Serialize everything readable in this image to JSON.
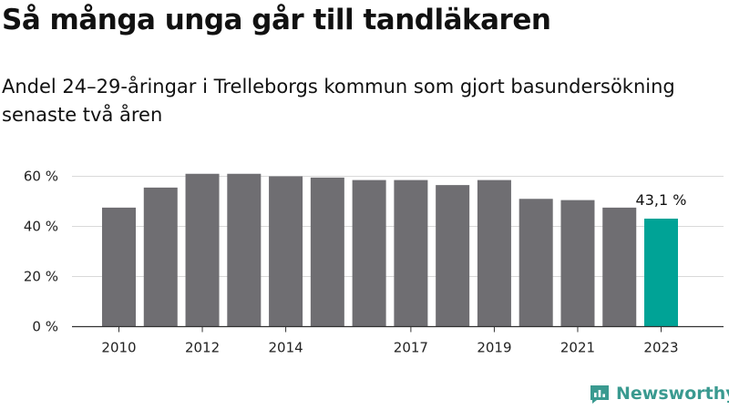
{
  "title": "Så många unga går till tandläkaren",
  "subtitle": "Andel 24–29-åringar i Trelleborgs kommun som gjort basundersökning senaste två åren",
  "brand": {
    "name": "Newsworthy",
    "icon": "newsworthy-logo-icon",
    "color": "#3a9a90"
  },
  "chart_data": {
    "type": "bar",
    "title": "Så många unga går till tandläkaren",
    "subtitle": "Andel 24–29-åringar i Trelleborgs kommun som gjort basundersökning senaste två åren",
    "categories": [
      "2010",
      "2011",
      "2012",
      "2013",
      "2014",
      "2015",
      "2016",
      "2017",
      "2018",
      "2019",
      "2020",
      "2021",
      "2022",
      "2023"
    ],
    "x_tick_labels": [
      "2010",
      "",
      "2012",
      "",
      "2014",
      "",
      "",
      "2017",
      "",
      "2019",
      "",
      "2021",
      "",
      "2023"
    ],
    "values": [
      47.5,
      55.5,
      61,
      61,
      60,
      59.5,
      58.5,
      58.5,
      56.5,
      58.5,
      51,
      50.5,
      47.5,
      43.1
    ],
    "ylim": [
      0,
      60
    ],
    "y_ticks": [
      0,
      20,
      40,
      60
    ],
    "y_tick_labels": [
      "0 %",
      "20 %",
      "40 %",
      "60 %"
    ],
    "grid": "horizontal",
    "bar_color": "#6f6e72",
    "highlight_color": "#00a396",
    "highlight_index": 13,
    "annotation": {
      "index": 13,
      "text": "43,1 %"
    }
  }
}
